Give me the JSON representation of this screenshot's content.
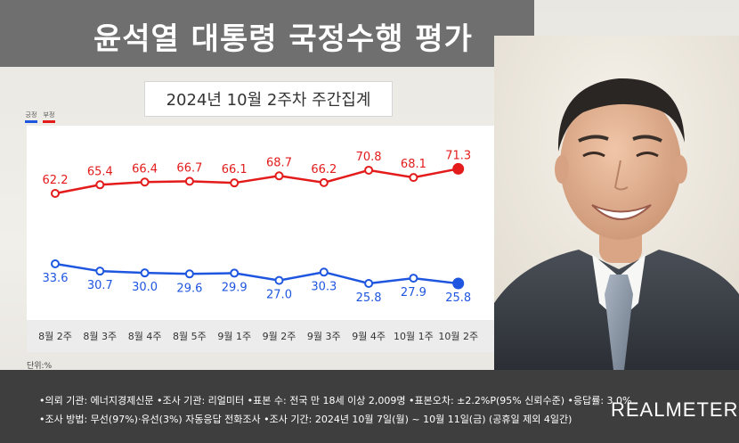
{
  "header": {
    "title": "윤석열 대통령 국정수행 평가",
    "subtitle": "2024년 10월 2주차 주간집계"
  },
  "legend": {
    "positive": "긍정",
    "negative": "부정"
  },
  "unit_label": "단위:%",
  "footer": {
    "line1": "•의뢰 기관: 에너지경제신문 •조사 기관: 리얼미터 •표본 수: 전국 만 18세 이상 2,009명 •표본오차: ±2.2%P(95% 신뢰수준) •응답률: 3.0%",
    "line2": "•조사 방법: 무선(97%)·유선(3%) 자동응답 전화조사 •조사 기간: 2024년 10월 7일(월) ~ 10월 11일(금) (공휴일 제외 4일간)",
    "brand": "REALMETER"
  },
  "colors": {
    "positive": "#1f56e0",
    "negative": "#e31b1b",
    "title_bar": "#6f6f6f",
    "footer": "#3e3e3e"
  },
  "chart_data": {
    "type": "line",
    "categories": [
      "8월 2주",
      "8월 3주",
      "8월 4주",
      "8월 5주",
      "9월 1주",
      "9월 2주",
      "9월 3주",
      "9월 4주",
      "10월 1주",
      "10월 2주"
    ],
    "series": [
      {
        "name": "부정",
        "color": "#e31b1b",
        "values": [
          62.2,
          65.4,
          66.4,
          66.7,
          66.1,
          68.7,
          66.2,
          70.8,
          68.1,
          71.3
        ]
      },
      {
        "name": "긍정",
        "color": "#1f56e0",
        "values": [
          33.6,
          30.7,
          30.0,
          29.6,
          29.9,
          27.0,
          30.3,
          25.8,
          27.9,
          25.8
        ]
      }
    ],
    "title": "윤석열 대통령 국정수행 평가",
    "subtitle": "2024년 10월 2주차 주간집계",
    "ylabel": "단위:%",
    "grid": false,
    "legend": "top-left"
  }
}
